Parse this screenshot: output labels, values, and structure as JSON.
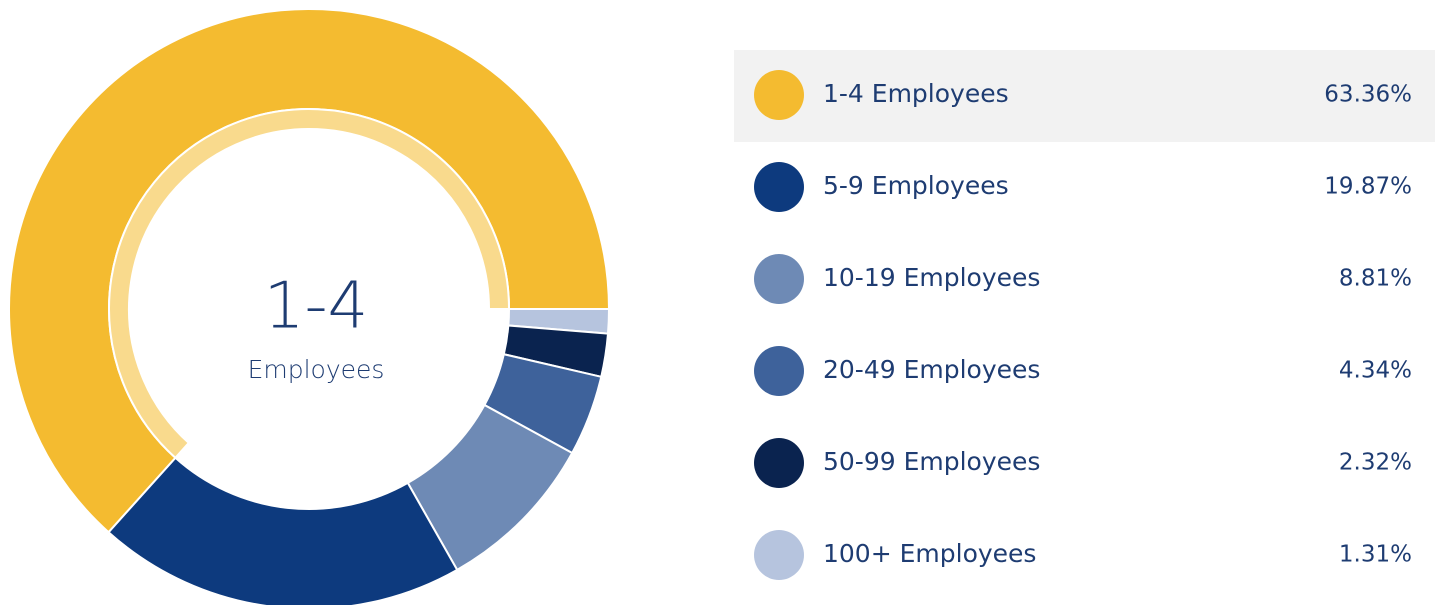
{
  "chart_data": {
    "type": "donut",
    "center_label": {
      "title": "1-4",
      "subtitle": "Employees"
    },
    "categories": [
      "1-4 Employees",
      "5-9 Employees",
      "10-19 Employees",
      "20-49 Employees",
      "50-99 Employees",
      "100+ Employees"
    ],
    "values": [
      63.36,
      19.87,
      8.81,
      4.34,
      2.32,
      1.31
    ],
    "value_labels": [
      "63.36%",
      "19.87%",
      "8.81%",
      "4.34%",
      "2.32%",
      "1.31%"
    ],
    "colors": [
      "#f4bb30",
      "#0d3a7e",
      "#6e8ab5",
      "#3e629b",
      "#0a234f",
      "#b6c4de"
    ],
    "selected": 0
  }
}
